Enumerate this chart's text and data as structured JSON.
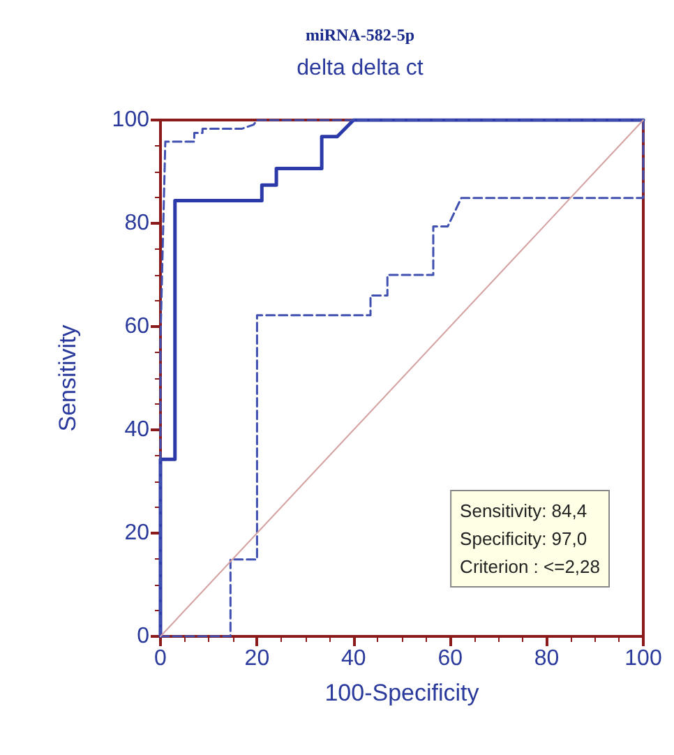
{
  "chart_data": {
    "type": "line",
    "title": "miRNA-582-5p",
    "subtitle": "delta delta ct",
    "xlabel": "100-Specificity",
    "ylabel": "Sensitivity",
    "xlim": [
      0,
      100
    ],
    "ylim": [
      0,
      100
    ],
    "xticks": [
      0,
      20,
      40,
      60,
      80,
      100
    ],
    "yticks": [
      0,
      20,
      40,
      60,
      80,
      100
    ],
    "grid": false,
    "marker": "none",
    "series": [
      {
        "color": "#2b3aa8",
        "line_style": "solid",
        "x": [
          0,
          0,
          3,
          3,
          21,
          21,
          24,
          24,
          33.4,
          33.4,
          36.6,
          40,
          100
        ],
        "values": [
          0,
          34.3,
          34.3,
          84.4,
          84.4,
          87.4,
          87.4,
          90.6,
          90.6,
          96.8,
          96.8,
          100,
          100
        ]
      },
      {
        "color": "#4050b0",
        "line_style": "dashed",
        "x": [
          0,
          0,
          1,
          7,
          7,
          8.7,
          8.7,
          16.8,
          19.3,
          20,
          100
        ],
        "values": [
          0,
          57.6,
          95.8,
          95.8,
          97.5,
          97.5,
          98.3,
          98.3,
          99.1,
          100,
          100
        ]
      },
      {
        "color": "#4050b0",
        "line_style": "dashed",
        "x": [
          0,
          14.5,
          14.5,
          20,
          20,
          43.5,
          43.5,
          47,
          47,
          56.5,
          56.5,
          59.5,
          62.3,
          100,
          100
        ],
        "values": [
          0,
          0,
          14.9,
          14.9,
          62.2,
          62.2,
          66,
          66,
          70,
          70,
          79.4,
          79.4,
          84.9,
          84.9,
          100
        ]
      },
      {
        "color": "#d4a0a0",
        "line_style": "solid",
        "x": [
          0,
          100
        ],
        "values": [
          0,
          100
        ]
      }
    ],
    "annotations": [
      "Sensitivity: 84,4",
      "Specificity: 97,0",
      "Criterion : <=2,28"
    ]
  }
}
